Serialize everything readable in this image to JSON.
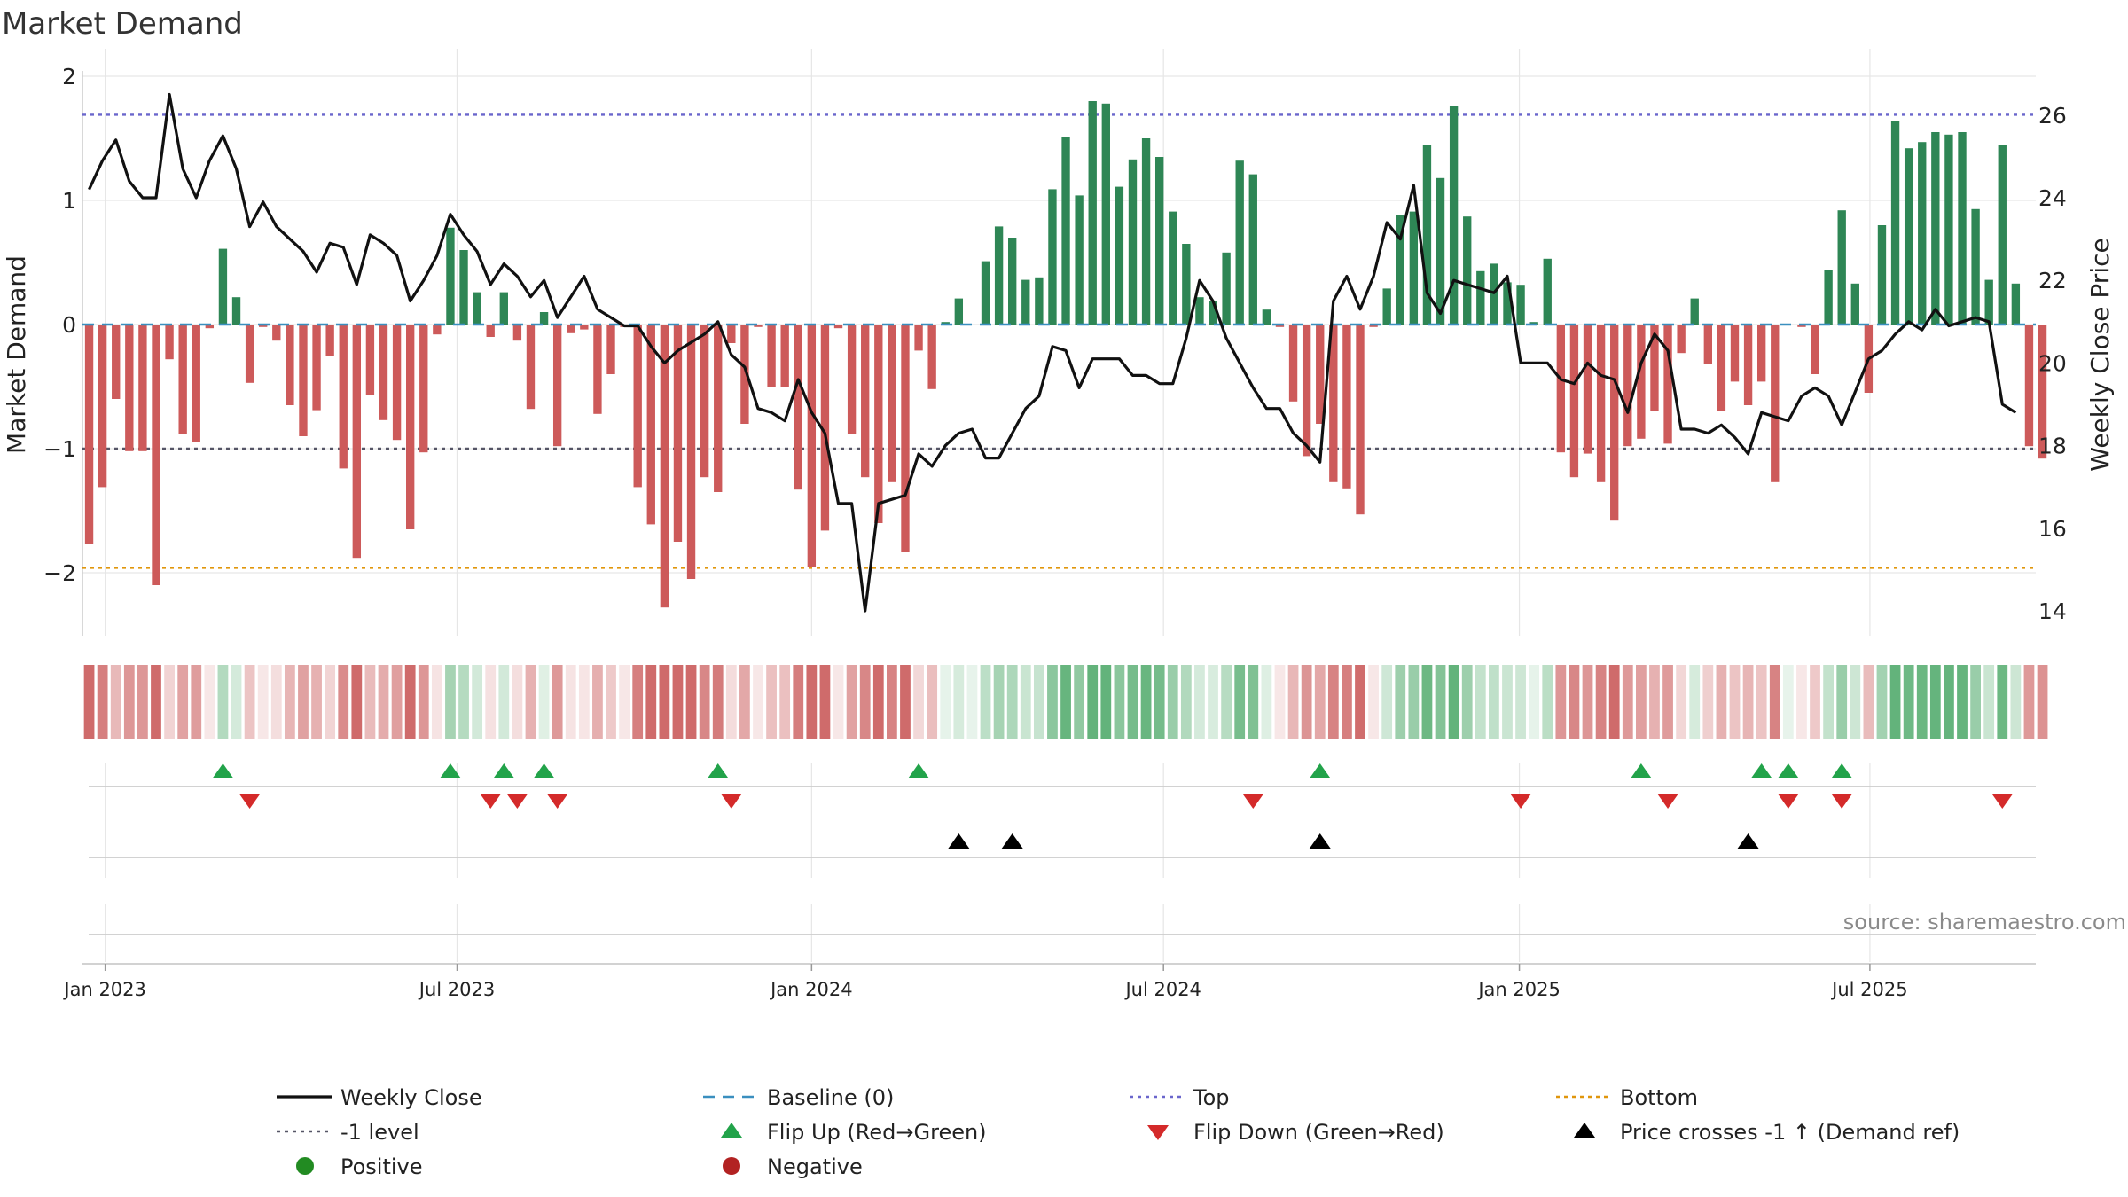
{
  "chart_data": {
    "type": "bar",
    "title": "Market Demand",
    "ylabel_left": "Market Demand",
    "ylabel_right": "Weekly Close Price",
    "ylim_left": [
      -2.5,
      2.0
    ],
    "ylim_right": [
      13.0,
      27.0
    ],
    "yticks_left": [
      {
        "v": 2,
        "label": "2"
      },
      {
        "v": 1,
        "label": "1"
      },
      {
        "v": 0,
        "label": "0"
      },
      {
        "v": -1,
        "label": "−1"
      },
      {
        "v": -2,
        "label": "−2"
      }
    ],
    "yticks_right": [
      {
        "v": 14,
        "label": "14"
      },
      {
        "v": 16,
        "label": "16"
      },
      {
        "v": 18,
        "label": "18"
      },
      {
        "v": 20,
        "label": "20"
      },
      {
        "v": 22,
        "label": "22"
      },
      {
        "v": 24,
        "label": "24"
      },
      {
        "v": 26,
        "label": "26"
      }
    ],
    "x_start": "2022-12-23",
    "x_end": "2025-09-12",
    "x_range_weeks": [
      -0.5,
      145.5
    ],
    "xticks": [
      {
        "week": 1.2,
        "label": "Jan 2023"
      },
      {
        "week": 27.5,
        "label": "Jul 2023"
      },
      {
        "week": 54.0,
        "label": "Jan 2024"
      },
      {
        "week": 80.3,
        "label": "Jul 2024"
      },
      {
        "week": 106.9,
        "label": "Jan 2025"
      },
      {
        "week": 133.1,
        "label": "Jul 2025"
      }
    ],
    "demand": [
      -1.77,
      -1.31,
      -0.6,
      -1.02,
      -1.02,
      -2.1,
      -0.28,
      -0.88,
      -0.95,
      -0.03,
      0.61,
      0.22,
      -0.47,
      -0.02,
      -0.13,
      -0.65,
      -0.9,
      -0.69,
      -0.25,
      -1.16,
      -1.88,
      -0.57,
      -0.77,
      -0.93,
      -1.65,
      -1.03,
      -0.08,
      0.78,
      0.6,
      0.26,
      -0.1,
      0.26,
      -0.13,
      -0.68,
      0.1,
      -0.98,
      -0.07,
      -0.04,
      -0.72,
      -0.4,
      -0.02,
      -1.31,
      -1.61,
      -2.28,
      -1.75,
      -2.05,
      -1.23,
      -1.35,
      -0.15,
      -0.8,
      -0.02,
      -0.5,
      -0.5,
      -1.33,
      -1.95,
      -1.66,
      -0.03,
      -0.88,
      -1.23,
      -1.6,
      -1.27,
      -1.83,
      -0.21,
      -0.52,
      0.02,
      0.21,
      0.0,
      0.51,
      0.79,
      0.7,
      0.36,
      0.38,
      1.09,
      1.51,
      1.04,
      1.8,
      1.78,
      1.11,
      1.33,
      1.5,
      1.35,
      0.91,
      0.65,
      0.22,
      0.19,
      0.58,
      1.32,
      1.21,
      0.12,
      -0.02,
      -0.62,
      -1.06,
      -0.8,
      -1.27,
      -1.32,
      -1.53,
      -0.02,
      0.29,
      0.88,
      0.91,
      1.45,
      1.18,
      1.76,
      0.87,
      0.43,
      0.49,
      0.34,
      0.32,
      0.02,
      0.53,
      -1.03,
      -1.23,
      -1.04,
      -1.27,
      -1.58,
      -0.98,
      -0.92,
      -0.7,
      -0.96,
      -0.23,
      0.21,
      -0.32,
      -0.7,
      -0.46,
      -0.65,
      -0.46,
      -1.27,
      0.0,
      -0.02,
      -0.4,
      0.44,
      0.92,
      0.33,
      -0.55,
      0.8,
      1.64,
      1.42,
      1.47,
      1.55,
      1.53,
      1.55,
      0.93,
      0.36,
      1.45,
      0.33,
      -0.98,
      -1.08
    ],
    "close": [
      24.2,
      24.9,
      25.4,
      24.4,
      24.0,
      24.0,
      26.5,
      24.7,
      24.0,
      24.9,
      25.5,
      24.7,
      23.3,
      23.9,
      23.3,
      23.0,
      22.7,
      22.2,
      22.9,
      22.8,
      21.9,
      23.1,
      22.9,
      22.6,
      21.5,
      22.0,
      22.6,
      23.6,
      23.1,
      22.7,
      21.9,
      22.4,
      22.1,
      21.6,
      22.0,
      21.1,
      21.6,
      22.1,
      21.3,
      21.1,
      20.9,
      20.9,
      20.4,
      20.0,
      20.3,
      20.5,
      20.7,
      21.0,
      20.2,
      19.9,
      18.9,
      18.8,
      18.6,
      19.6,
      18.8,
      18.3,
      16.6,
      16.6,
      14.0,
      16.6,
      16.7,
      16.8,
      17.8,
      17.5,
      18.0,
      18.3,
      18.4,
      17.7,
      17.7,
      18.3,
      18.9,
      19.2,
      20.4,
      20.3,
      19.4,
      20.1,
      20.1,
      20.1,
      19.7,
      19.7,
      19.5,
      19.5,
      20.6,
      22.0,
      21.5,
      20.6,
      20.0,
      19.4,
      18.9,
      18.9,
      18.3,
      18.0,
      17.6,
      21.5,
      22.1,
      21.3,
      22.1,
      23.4,
      23.0,
      24.3,
      21.7,
      21.2,
      22.0,
      21.9,
      21.8,
      21.7,
      22.1,
      20.0,
      20.0,
      20.0,
      19.6,
      19.5,
      20.0,
      19.7,
      19.6,
      18.8,
      20.0,
      20.7,
      20.3,
      18.4,
      18.4,
      18.3,
      18.5,
      18.2,
      17.8,
      18.8,
      18.7,
      18.6,
      19.2,
      19.4,
      19.2,
      18.5,
      19.3,
      20.1,
      20.3,
      20.7,
      21.0,
      20.8,
      21.3,
      20.9,
      21.0,
      21.1,
      21.0,
      19.0,
      18.8
    ],
    "top_level": 1.69,
    "bottom_level": -1.96,
    "minus1_level": -1.0,
    "baseline": 0,
    "flip_up_weeks": [
      10,
      27,
      31,
      34,
      47,
      62,
      92,
      116,
      125,
      127,
      131
    ],
    "flip_down_weeks": [
      12,
      30,
      32,
      35,
      48,
      87,
      107,
      118,
      127,
      131,
      143
    ],
    "price_cross_weeks": [
      65,
      69,
      92,
      124
    ],
    "source": "source: sharemaestro.com",
    "legend": [
      {
        "key": "weekly_close",
        "label": "Weekly Close"
      },
      {
        "key": "baseline",
        "label": "Baseline (0)"
      },
      {
        "key": "top",
        "label": "Top"
      },
      {
        "key": "bottom",
        "label": "Bottom"
      },
      {
        "key": "minus1",
        "label": "-1 level"
      },
      {
        "key": "flip_up",
        "label": "Flip Up (Red→Green)"
      },
      {
        "key": "flip_down",
        "label": "Flip Down (Green→Red)"
      },
      {
        "key": "price_cross",
        "label": "Price crosses -1 ↑ (Demand ref)"
      },
      {
        "key": "positive",
        "label": "Positive"
      },
      {
        "key": "negative",
        "label": "Negative"
      }
    ],
    "colors": {
      "positive_bar": "#2e8655",
      "negative_bar": "#cd5a5a",
      "line": "#111111",
      "baseline": "#3a8fbf",
      "top": "#6a66cc",
      "bottom": "#e0960c",
      "minus1": "#555566",
      "flip_up": "#22a34a",
      "flip_down": "#d42a2a",
      "cross": "#000000",
      "legend_positive": "#228b22",
      "legend_negative": "#b22222",
      "grid": "#e6e6e6",
      "axis": "#cccccc"
    }
  }
}
